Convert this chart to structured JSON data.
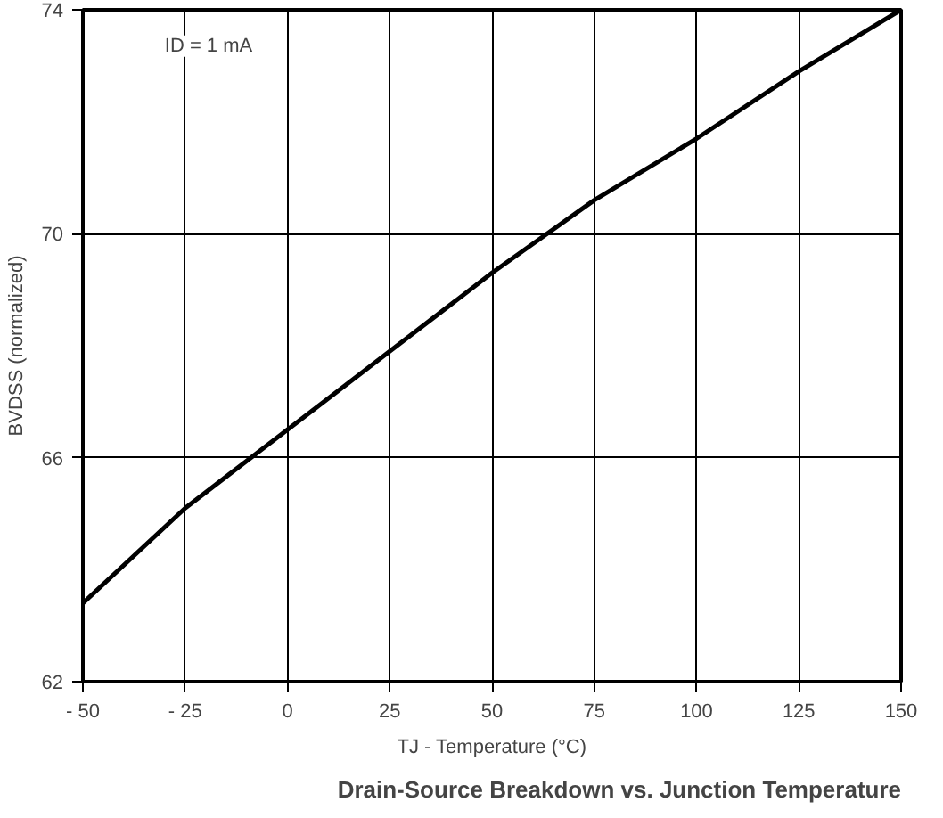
{
  "chart_data": {
    "type": "line",
    "title": "Drain-Source Breakdown vs. Junction Temperature",
    "xlabel": "TJ - Temperature (°C)",
    "ylabel": "BVDSS (normalized)",
    "annotations": [
      "ID = 1 mA"
    ],
    "x": [
      -50,
      -25,
      0,
      25,
      50,
      75,
      100,
      125,
      150
    ],
    "series": [
      {
        "color": "#000000",
        "values": [
          63.4,
          65.1,
          66.5,
          67.9,
          69.3,
          70.6,
          71.7,
          72.9,
          74.0
        ]
      }
    ],
    "xlim": [
      -50,
      150
    ],
    "ylim": [
      62,
      74
    ],
    "xticks": [
      {
        "value": -50,
        "label": "- 50"
      },
      {
        "value": -25,
        "label": "- 25"
      },
      0,
      25,
      50,
      75,
      100,
      125,
      150
    ],
    "yticks": [
      62,
      66,
      70,
      74
    ],
    "grid": true,
    "marker": "none",
    "line_style": "solid"
  }
}
